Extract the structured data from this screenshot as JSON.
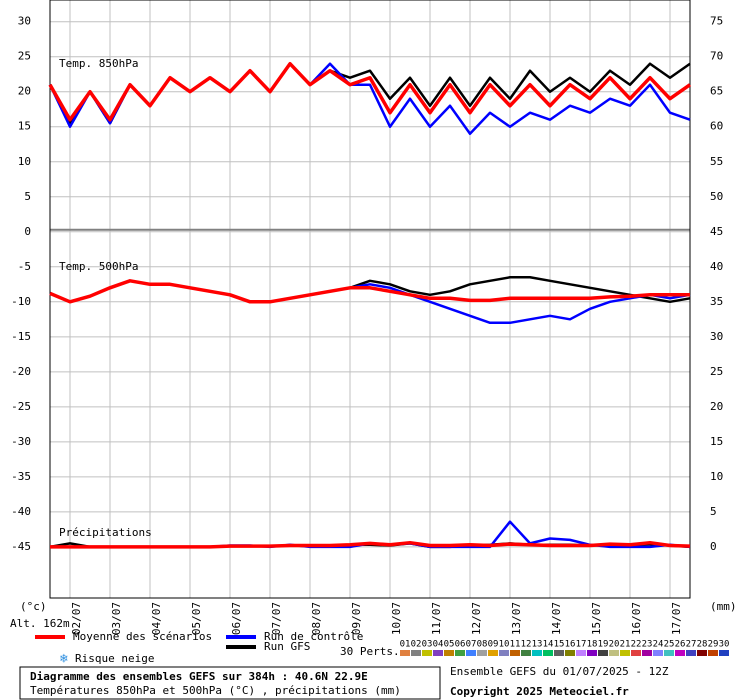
{
  "chart_data": {
    "type": "line",
    "categories": [
      null,
      "02/07",
      null,
      "03/07",
      null,
      "04/07",
      null,
      "05/07",
      null,
      "06/07",
      null,
      "07/07",
      null,
      "08/07",
      null,
      "09/07",
      null,
      "10/07",
      null,
      "11/07",
      null,
      "12/07",
      null,
      "13/07",
      null,
      "14/07",
      null,
      "15/07",
      null,
      "16/07",
      null,
      "17/07",
      null
    ],
    "ylim": [
      -52.3,
      33.1
    ],
    "yticks": [
      30,
      25,
      20,
      15,
      10,
      5,
      0,
      -5,
      -10,
      -15,
      -20,
      -25,
      -30,
      -35,
      -40,
      -45
    ],
    "y2lim": [
      -7.3,
      78.1
    ],
    "y2ticks": [
      75,
      70,
      65,
      60,
      55,
      50,
      45,
      40,
      35,
      30,
      25,
      20,
      15,
      10,
      5,
      0
    ],
    "y_unit": "(°c)",
    "y2_unit": "(mm)",
    "altitude": "Alt. 162m",
    "grid": true,
    "legend": [
      {
        "name": "Moyenne des scénarios",
        "color": "#ff0000"
      },
      {
        "name": "Run de contrôle",
        "color": "#0000ff"
      },
      {
        "name": "Run GFS",
        "color": "#000000"
      }
    ],
    "panels": [
      {
        "label": "Temp. 850hPa",
        "axis": "y",
        "series": [
          {
            "values": [
              21,
              16,
              20,
              16,
              21,
              18,
              22,
              20,
              22,
              20,
              23,
              20,
              24,
              21,
              23,
              21,
              22,
              17,
              21,
              17,
              21,
              17,
              21,
              18,
              21,
              18,
              21,
              19,
              22,
              19,
              22,
              19,
              21
            ]
          },
          {
            "values": [
              21,
              15,
              20,
              15.5,
              21,
              18,
              22,
              20,
              22,
              20,
              23,
              20,
              24,
              21,
              24,
              21,
              21,
              15,
              19,
              15,
              18,
              14,
              17,
              15,
              17,
              16,
              18,
              17,
              19,
              18,
              21,
              17,
              16
            ]
          },
          {
            "values": [
              21,
              15.5,
              20,
              15.5,
              21,
              18,
              22,
              20,
              22,
              20,
              23,
              20,
              24,
              21,
              23,
              22,
              23,
              19,
              22,
              18,
              22,
              18,
              22,
              19,
              23,
              20,
              22,
              20,
              23,
              21,
              24,
              22,
              24
            ]
          }
        ]
      },
      {
        "label": "Temp. 500hPa",
        "axis": "y",
        "series": [
          {
            "values": [
              -8.8,
              -10,
              -9.2,
              -8,
              -7,
              -7.5,
              -7.5,
              -8,
              -8.5,
              -9,
              -10,
              -10,
              -9.5,
              -9,
              -8.5,
              -8,
              -8,
              -8.5,
              -9,
              -9.5,
              -9.5,
              -9.8,
              -9.8,
              -9.5,
              -9.5,
              -9.5,
              -9.5,
              -9.5,
              -9.3,
              -9.2,
              -9,
              -9,
              -9
            ]
          },
          {
            "values": [
              -8.8,
              -10,
              -9.2,
              -8,
              -7,
              -7.5,
              -7.5,
              -8,
              -8.5,
              -9,
              -10,
              -10,
              -9.5,
              -9,
              -8.5,
              -8,
              -7.5,
              -8,
              -9,
              -10,
              -11,
              -12,
              -13,
              -13,
              -12.5,
              -12,
              -12.5,
              -11,
              -10,
              -9.5,
              -9,
              -9.5,
              -9
            ]
          },
          {
            "values": [
              -8.8,
              -10,
              -9.2,
              -8,
              -7,
              -7.5,
              -7.5,
              -8,
              -8.5,
              -9,
              -10,
              -10,
              -9.5,
              -9,
              -8.5,
              -8,
              -7,
              -7.5,
              -8.5,
              -9,
              -8.5,
              -7.5,
              -7,
              -6.5,
              -6.5,
              -7,
              -7.5,
              -8,
              -8.5,
              -9,
              -9.5,
              -10,
              -9.5
            ]
          }
        ]
      },
      {
        "label": "Précipitations",
        "axis": "y2",
        "series": [
          {
            "values": [
              0,
              0,
              0,
              0,
              0,
              0,
              0,
              0,
              0,
              0.1,
              0.1,
              0.1,
              0.2,
              0.2,
              0.2,
              0.3,
              0.5,
              0.3,
              0.6,
              0.2,
              0.2,
              0.3,
              0.2,
              0.4,
              0.3,
              0.2,
              0.2,
              0.2,
              0.4,
              0.3,
              0.6,
              0.2,
              0.1
            ]
          },
          {
            "values": [
              0,
              0,
              0,
              0,
              0,
              0,
              0,
              0,
              0,
              0.2,
              0.2,
              0,
              0.3,
              0,
              0,
              0,
              0.5,
              0.3,
              0.5,
              0,
              0,
              0,
              0,
              3.6,
              0.5,
              1.2,
              1,
              0.3,
              0,
              0,
              0,
              0.3,
              0
            ]
          },
          {
            "values": [
              0,
              0.5,
              0,
              0,
              0,
              0,
              0,
              0,
              0,
              0.1,
              0.1,
              0.1,
              0.2,
              0.1,
              0.1,
              0.3,
              0.3,
              0.2,
              0.5,
              0,
              0,
              0.2,
              0.3,
              0.5,
              0.3,
              0.3,
              0.3,
              0.2,
              0.3,
              0.2,
              0.4,
              0.2,
              0
            ]
          }
        ]
      }
    ],
    "perturbations": {
      "label": "30 Perts.",
      "names": [
        "01",
        "02",
        "03",
        "04",
        "05",
        "06",
        "07",
        "08",
        "09",
        "10",
        "11",
        "12",
        "13",
        "14",
        "15",
        "16",
        "17",
        "18",
        "19",
        "20",
        "21",
        "22",
        "23",
        "24",
        "25",
        "26",
        "27",
        "28",
        "29",
        "30"
      ],
      "colors": [
        "#e08040",
        "#808080",
        "#c0c000",
        "#8040c0",
        "#c08000",
        "#40a040",
        "#4080ff",
        "#a0a0a0",
        "#e0a000",
        "#8080c0",
        "#c06000",
        "#408040",
        "#00c0c0",
        "#00c060",
        "#606060",
        "#808000",
        "#c080ff",
        "#8000c0",
        "#404040",
        "#c0c080",
        "#c0c000",
        "#e04040",
        "#a000a0",
        "#8080ff",
        "#40c0c0",
        "#c000c0",
        "#4040c0",
        "#800000",
        "#c04000",
        "#2040c0"
      ]
    },
    "snow_label": "Risque neige",
    "title": "Diagramme des ensembles GEFS sur 384h : 40.6N 22.9E",
    "subtitle": "Températures 850hPa et 500hPa (°C) , précipitations (mm)",
    "run_label": "Ensemble GEFS du 01/07/2025 - 12Z",
    "copyright": "Copyright 2025 Meteociel.fr"
  }
}
